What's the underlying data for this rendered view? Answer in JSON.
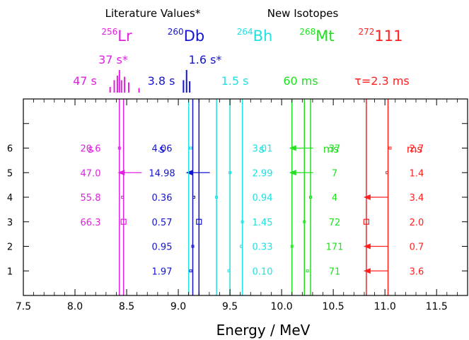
{
  "chart_data": {
    "type": "scatter",
    "xlabel": "Energy / MeV",
    "xlim": [
      7.5,
      11.8
    ],
    "ylim": [
      0,
      8
    ],
    "x_ticks": [
      "7.5",
      "8.0",
      "8.5",
      "9.0",
      "9.5",
      "10.0",
      "10.5",
      "11.0",
      "11.5"
    ],
    "y_ticks": [
      "1",
      "2",
      "3",
      "4",
      "5",
      "6"
    ],
    "header": {
      "literature_label": "Literature Values*",
      "new_isotopes_label": "New Isotopes"
    },
    "isotopes": [
      {
        "key": "lr",
        "mass": "256",
        "symbol": "Lr",
        "color": "#e020e0",
        "lit_value": "37 s*",
        "half_life": "47 s",
        "unit": "s",
        "spectrum_x": [
          8.34,
          8.38,
          8.41,
          8.43,
          8.45,
          8.48,
          8.52,
          8.62
        ],
        "spectrum_h": [
          0.25,
          0.55,
          0.75,
          1.0,
          0.55,
          0.7,
          0.45,
          0.2
        ],
        "lines_x": [
          8.43,
          8.47
        ],
        "values": [
          "20.6",
          "47.0",
          "55.8",
          "66.3",
          "",
          ""
        ],
        "points_x": [
          8.43,
          8.44,
          8.46,
          8.47,
          null,
          null
        ],
        "markers": [
          "point",
          "arrow",
          "point",
          "square",
          "",
          ""
        ]
      },
      {
        "key": "db",
        "mass": "260",
        "symbol": "Db",
        "color": "#1414d0",
        "lit_value": "1.6 s*",
        "half_life": "3.8 s",
        "unit": "s",
        "spectrum_x": [
          9.05,
          9.08,
          9.11
        ],
        "spectrum_h": [
          0.55,
          1.0,
          0.5
        ],
        "lines_x": [
          9.14,
          9.2
        ],
        "values": [
          "4.06",
          "14.98",
          "0.36",
          "0.57",
          "0.95",
          "1.97"
        ],
        "points_x": [
          9.12,
          9.1,
          9.15,
          9.2,
          9.14,
          9.12
        ],
        "markers": [
          "point",
          "arrow",
          "point",
          "square",
          "point",
          "point"
        ]
      },
      {
        "key": "bh",
        "mass": "264",
        "symbol": "Bh",
        "color": "#20e0e0",
        "lit_value": "",
        "half_life": "1.5 s",
        "unit": "s",
        "spectrum_x": [],
        "spectrum_h": [],
        "lines_x": [
          9.1,
          9.37,
          9.5,
          9.62
        ],
        "values": [
          "3.01",
          "2.99",
          "0.94",
          "1.45",
          "0.33",
          "0.10"
        ],
        "points_x": [
          9.12,
          9.5,
          9.37,
          9.62,
          9.61,
          9.49
        ],
        "markers": [
          "point",
          "point",
          "point",
          "point",
          "point",
          "point"
        ]
      },
      {
        "key": "mt",
        "mass": "268",
        "symbol": "Mt",
        "color": "#20e020",
        "lit_value": "",
        "half_life": "60 ms",
        "unit": "ms",
        "spectrum_x": [],
        "spectrum_h": [],
        "lines_x": [
          10.1,
          10.22,
          10.28
        ],
        "values": [
          "37",
          "7",
          "4",
          "72",
          "171",
          "71"
        ],
        "points_x": [
          10.1,
          10.1,
          10.28,
          10.22,
          10.1,
          10.25
        ],
        "markers": [
          "arrow",
          "arrow",
          "point",
          "point",
          "point",
          "point"
        ]
      },
      {
        "key": "e111",
        "mass": "272",
        "symbol": "111",
        "color": "#ff2020",
        "lit_value": "",
        "half_life": "τ=2.3 ms",
        "unit": "ms",
        "spectrum_x": [],
        "spectrum_h": [],
        "lines_x": [
          10.82,
          11.03
        ],
        "values": [
          "2.7",
          "1.4",
          "3.4",
          "2.0",
          "0.7",
          "3.6"
        ],
        "points_x": [
          11.05,
          11.02,
          10.82,
          10.82,
          10.82,
          10.82
        ],
        "markers": [
          "point",
          "point",
          "arrow",
          "square",
          "arrow",
          "arrow"
        ]
      }
    ]
  }
}
